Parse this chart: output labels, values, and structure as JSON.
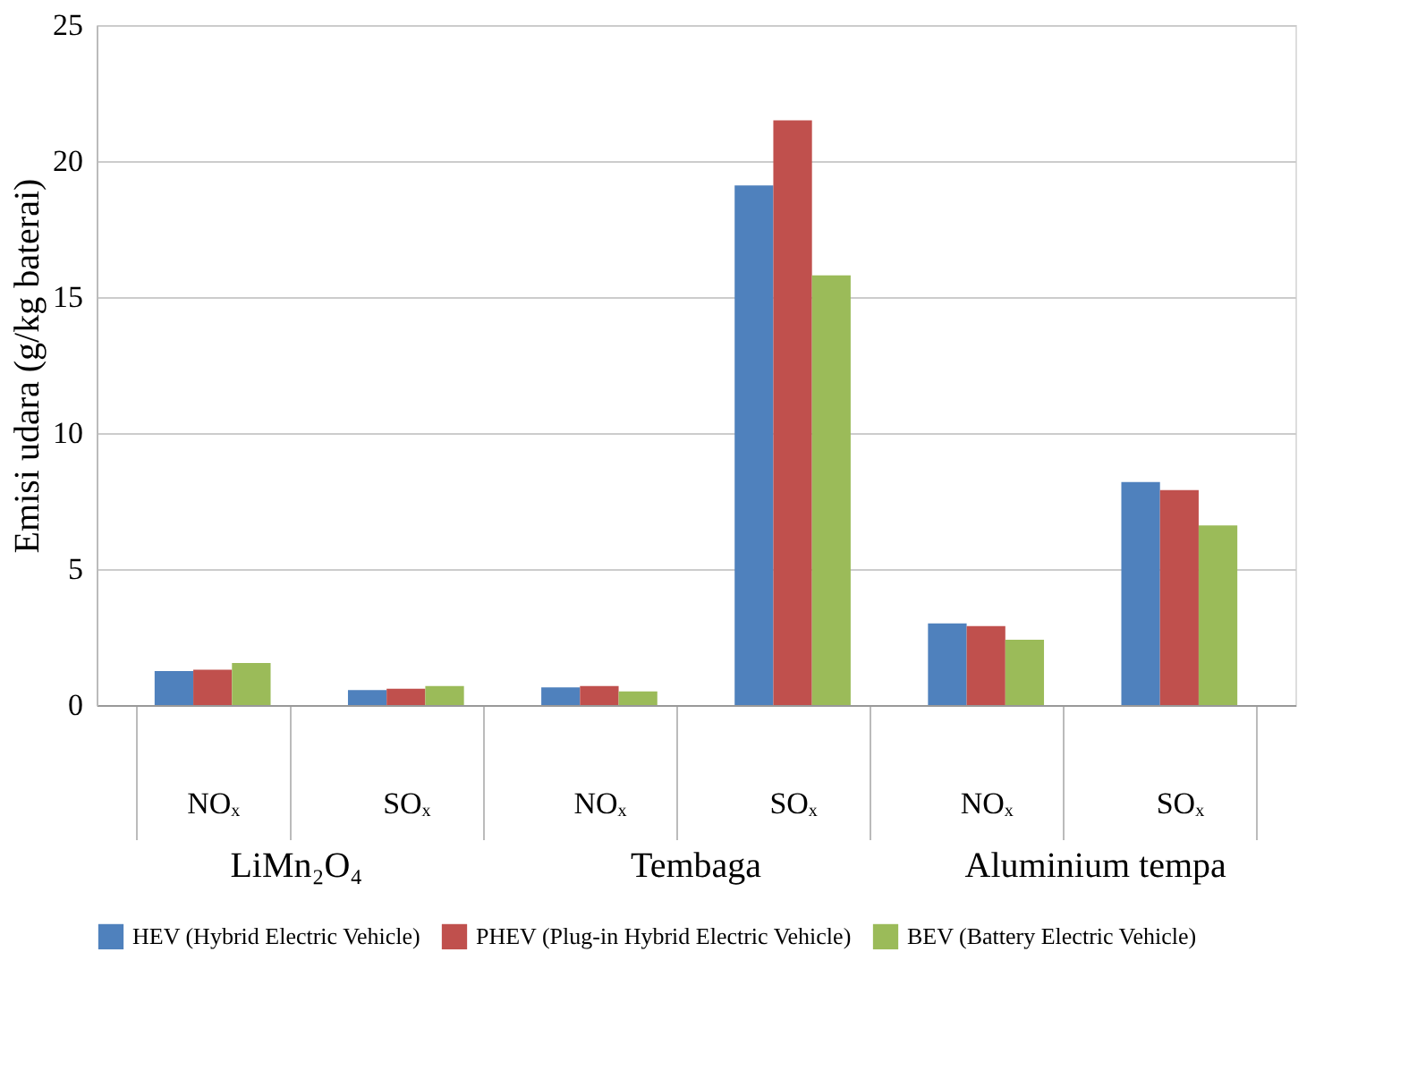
{
  "chart_data": {
    "type": "bar",
    "ylabel": "Emisi udara (g/kg baterai)",
    "categories": [
      "NOₓ",
      "SOₓ",
      "NOₓ",
      "SOₓ",
      "NOₓ",
      "SOₓ"
    ],
    "series": [
      {
        "name": "HEV (Hybrid Electric Vehicle)",
        "color": "#4f81bd",
        "values": [
          1.25,
          0.55,
          0.65,
          19.1,
          3.0,
          8.2
        ]
      },
      {
        "name": "PHEV (Plug-in Hybrid Electric Vehicle)",
        "color": "#c0504d",
        "values": [
          1.3,
          0.6,
          0.7,
          21.5,
          2.9,
          7.9
        ]
      },
      {
        "name": "BEV (Battery Electric Vehicle)",
        "color": "#9bbb59",
        "values": [
          1.55,
          0.7,
          0.5,
          15.8,
          2.4,
          6.6
        ]
      }
    ],
    "annotations": [
      "LiMn₂O₄",
      "Tembaga",
      "Aluminium tempa"
    ],
    "ylim": [
      0,
      25
    ],
    "yticks": [
      0,
      5,
      10,
      15,
      20,
      25
    ],
    "grid": "y",
    "legend": "bottom"
  }
}
